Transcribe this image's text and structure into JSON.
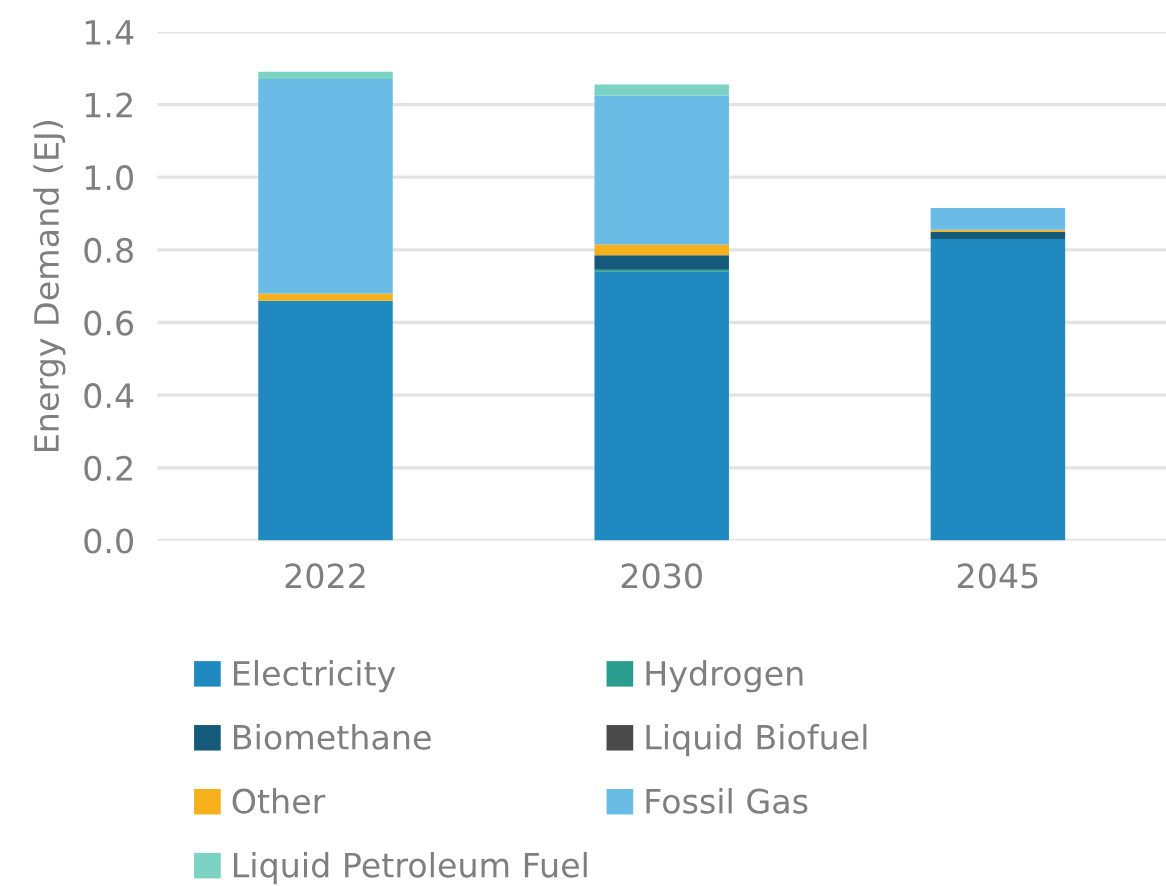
{
  "chart_data": {
    "type": "bar",
    "stacked": true,
    "ylabel": "Energy Demand (EJ)",
    "categories": [
      "2022",
      "2030",
      "2045"
    ],
    "series": [
      {
        "name": "Electricity",
        "color": "#2089c0",
        "values": [
          0.66,
          0.74,
          0.83
        ]
      },
      {
        "name": "Hydrogen",
        "color": "#2a9d8f",
        "values": [
          null,
          0.005,
          null
        ]
      },
      {
        "name": "Biomethane",
        "color": "#155a7a",
        "values": [
          null,
          0.04,
          0.02
        ]
      },
      {
        "name": "Liquid Biofuel",
        "color": "#4a4a4a",
        "values": [
          null,
          null,
          null
        ]
      },
      {
        "name": "Other",
        "color": "#f5b01c",
        "values": [
          0.02,
          0.03,
          0.005
        ]
      },
      {
        "name": "Fossil Gas",
        "color": "#6abbe5",
        "values": [
          0.59,
          0.41,
          0.06
        ]
      },
      {
        "name": "Liquid Petroleum Fuel",
        "color": "#7dd3c3",
        "values": [
          0.02,
          0.03,
          null
        ]
      }
    ],
    "ylim": [
      0,
      1.4
    ],
    "yticks": [
      {
        "value": 0,
        "label": "0.0"
      },
      0.2,
      0.4,
      0.6,
      0.8,
      {
        "value": 1,
        "label": "1.0"
      },
      1.2,
      1.4
    ],
    "grid": "y",
    "legend": "bottom"
  }
}
